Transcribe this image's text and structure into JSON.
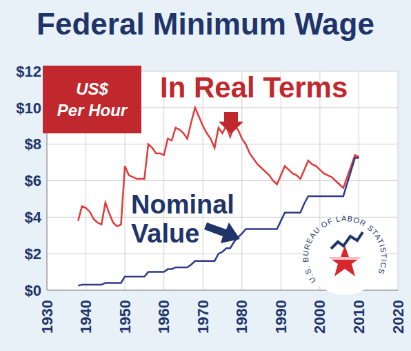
{
  "chart_data": {
    "type": "line",
    "title": "Federal Minimum Wage",
    "y_label": "US$ Per Hour",
    "source": "U.S. BUREAU OF LABOR STATISTICS",
    "x": [
      1938,
      1939,
      1940,
      1941,
      1942,
      1943,
      1944,
      1945,
      1946,
      1947,
      1948,
      1949,
      1950,
      1951,
      1952,
      1953,
      1954,
      1955,
      1956,
      1957,
      1958,
      1959,
      1960,
      1961,
      1962,
      1963,
      1964,
      1965,
      1966,
      1967,
      1968,
      1969,
      1970,
      1971,
      1972,
      1973,
      1974,
      1975,
      1976,
      1977,
      1978,
      1979,
      1980,
      1981,
      1982,
      1983,
      1984,
      1985,
      1986,
      1987,
      1988,
      1989,
      1990,
      1991,
      1992,
      1993,
      1994,
      1995,
      1996,
      1997,
      1998,
      1999,
      2000,
      2001,
      2002,
      2003,
      2004,
      2005,
      2006,
      2007,
      2008,
      2009,
      2010
    ],
    "series": [
      {
        "name": "In Real Terms",
        "color": "#e03a3a",
        "values": [
          3.8,
          4.6,
          4.5,
          4.3,
          3.9,
          3.7,
          3.6,
          4.8,
          4.2,
          3.7,
          3.5,
          3.6,
          6.8,
          6.3,
          6.2,
          6.1,
          6.1,
          6.1,
          8.0,
          7.8,
          7.5,
          7.5,
          7.4,
          8.3,
          8.2,
          8.9,
          8.8,
          8.6,
          8.3,
          9.2,
          10.0,
          9.5,
          9.0,
          8.6,
          8.3,
          7.8,
          8.9,
          8.6,
          9.0,
          8.4,
          9.0,
          8.8,
          8.3,
          8.0,
          7.5,
          7.2,
          6.9,
          6.7,
          6.5,
          6.3,
          6.0,
          5.8,
          6.3,
          6.8,
          6.6,
          6.4,
          6.3,
          6.1,
          6.6,
          7.1,
          6.9,
          6.8,
          6.6,
          6.4,
          6.3,
          6.2,
          6.0,
          5.8,
          5.6,
          6.2,
          6.8,
          7.4,
          7.3
        ]
      },
      {
        "name": "Nominal Value",
        "color": "#2e3a8c",
        "values": [
          0.25,
          0.3,
          0.3,
          0.3,
          0.3,
          0.3,
          0.3,
          0.4,
          0.4,
          0.4,
          0.4,
          0.4,
          0.75,
          0.75,
          0.75,
          0.75,
          0.75,
          0.75,
          1.0,
          1.0,
          1.0,
          1.0,
          1.0,
          1.15,
          1.15,
          1.25,
          1.25,
          1.25,
          1.25,
          1.4,
          1.6,
          1.6,
          1.6,
          1.6,
          1.6,
          1.6,
          2.0,
          2.1,
          2.3,
          2.3,
          2.65,
          2.9,
          3.1,
          3.35,
          3.35,
          3.35,
          3.35,
          3.35,
          3.35,
          3.35,
          3.35,
          3.35,
          3.8,
          4.25,
          4.25,
          4.25,
          4.25,
          4.25,
          4.75,
          5.15,
          5.15,
          5.15,
          5.15,
          5.15,
          5.15,
          5.15,
          5.15,
          5.15,
          5.15,
          5.85,
          6.55,
          7.25,
          7.25
        ]
      }
    ],
    "xlim": [
      1930,
      2020
    ],
    "xticks": [
      1930,
      1940,
      1950,
      1960,
      1970,
      1980,
      1990,
      2000,
      2010,
      2020
    ],
    "ylim": [
      0,
      12
    ],
    "yticks": [
      {
        "value": 0,
        "label": "$0"
      },
      {
        "value": 2,
        "label": "$2"
      },
      {
        "value": 4,
        "label": "$4"
      },
      {
        "value": 6,
        "label": "$6"
      },
      {
        "value": 8,
        "label": "$8"
      },
      {
        "value": 10,
        "label": "$10"
      },
      {
        "value": 12,
        "label": "$12"
      }
    ],
    "grid": true
  }
}
